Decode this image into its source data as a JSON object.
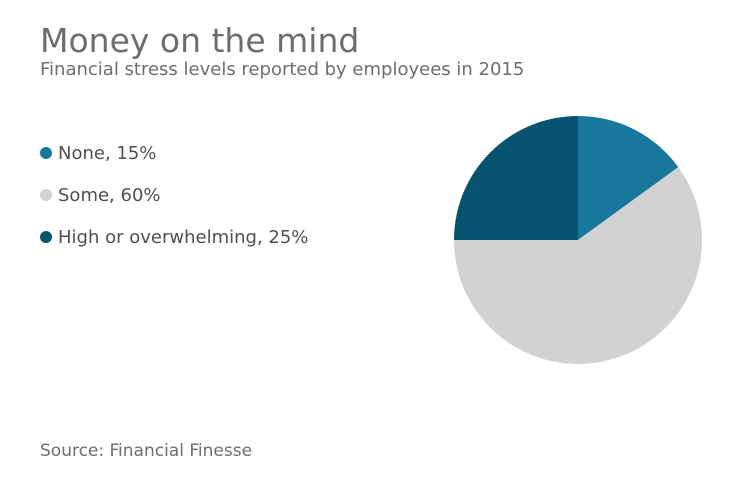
{
  "header": {
    "title": "Money on the mind",
    "subtitle": "Financial stress levels reported by employees in 2015"
  },
  "chart_data": {
    "type": "pie",
    "title": "Money on the mind",
    "subtitle": "Financial stress levels reported by employees in 2015",
    "series": [
      {
        "label": "None",
        "value": 15,
        "color": "#17789c",
        "legend_label": "None, 15%"
      },
      {
        "label": "Some",
        "value": 60,
        "color": "#d2d2d2",
        "legend_label": "Some, 60%"
      },
      {
        "label": "High or overwhelming",
        "value": 25,
        "color": "#065370",
        "legend_label": "High or overwhelming, 25%"
      }
    ],
    "unit": "%",
    "start_angle_deg": 0,
    "direction": "clockwise",
    "legend_position": "left",
    "grid": false,
    "source": "Source: Financial Finesse"
  },
  "footer": {
    "source": "Source: Financial Finesse"
  }
}
